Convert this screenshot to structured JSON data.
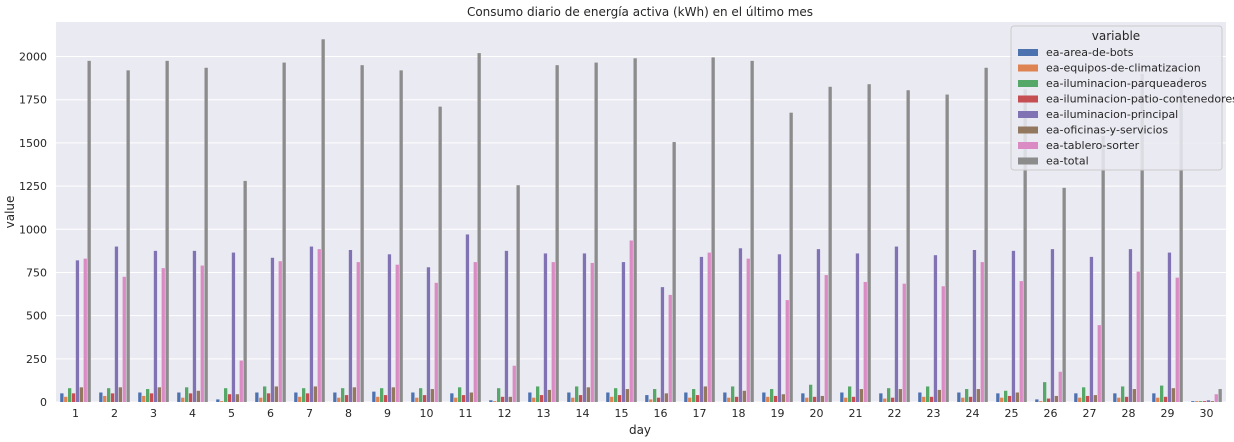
{
  "chart_data": {
    "type": "bar",
    "title": "Consumo diario de energía activa (kWh) en el último mes",
    "xlabel": "day",
    "ylabel": "value",
    "ylim": [
      0,
      2200
    ],
    "yticks": [
      0,
      250,
      500,
      750,
      1000,
      1250,
      1500,
      1750,
      2000
    ],
    "grid": true,
    "legend": {
      "title": "variable",
      "placement": "top-right"
    },
    "categories": [
      "1",
      "2",
      "3",
      "4",
      "5",
      "6",
      "7",
      "8",
      "9",
      "10",
      "11",
      "12",
      "13",
      "14",
      "15",
      "16",
      "17",
      "18",
      "19",
      "20",
      "21",
      "22",
      "23",
      "24",
      "25",
      "26",
      "27",
      "28",
      "29",
      "30"
    ],
    "series": [
      {
        "name": "ea-area-de-bots",
        "color": "#4c72b0",
        "values": [
          50,
          55,
          55,
          55,
          15,
          55,
          55,
          55,
          60,
          55,
          50,
          10,
          55,
          55,
          55,
          40,
          55,
          55,
          55,
          50,
          55,
          50,
          55,
          55,
          50,
          15,
          50,
          50,
          50,
          5
        ]
      },
      {
        "name": "ea-equipos-de-climatizacion",
        "color": "#dd8452",
        "values": [
          30,
          35,
          35,
          25,
          5,
          25,
          30,
          25,
          30,
          25,
          25,
          5,
          25,
          25,
          30,
          15,
          25,
          25,
          30,
          25,
          25,
          20,
          30,
          25,
          25,
          5,
          25,
          25,
          25,
          5
        ]
      },
      {
        "name": "ea-iluminacion-parqueaderos",
        "color": "#55a868",
        "values": [
          80,
          80,
          75,
          85,
          80,
          90,
          80,
          80,
          80,
          80,
          85,
          80,
          90,
          90,
          80,
          75,
          75,
          90,
          75,
          100,
          90,
          80,
          90,
          75,
          65,
          115,
          85,
          90,
          95,
          5
        ]
      },
      {
        "name": "ea-iluminacion-patio-contenedores",
        "color": "#c44e52",
        "values": [
          50,
          50,
          50,
          50,
          45,
          50,
          50,
          40,
          40,
          40,
          40,
          30,
          40,
          40,
          40,
          25,
          40,
          30,
          35,
          30,
          30,
          25,
          30,
          30,
          35,
          20,
          35,
          30,
          30,
          5
        ]
      },
      {
        "name": "ea-iluminacion-principal",
        "color": "#8172b3",
        "values": [
          820,
          900,
          875,
          875,
          865,
          835,
          900,
          880,
          855,
          780,
          970,
          875,
          860,
          860,
          810,
          665,
          840,
          890,
          855,
          885,
          860,
          900,
          850,
          880,
          875,
          885,
          840,
          885,
          865,
          10
        ]
      },
      {
        "name": "ea-oficinas-y-servicios",
        "color": "#937860",
        "values": [
          85,
          85,
          85,
          65,
          45,
          90,
          90,
          85,
          85,
          75,
          55,
          30,
          70,
          85,
          75,
          50,
          90,
          65,
          45,
          35,
          75,
          75,
          70,
          75,
          55,
          35,
          40,
          75,
          80,
          5
        ]
      },
      {
        "name": "ea-tablero-sorter",
        "color": "#da8bc3",
        "values": [
          830,
          725,
          775,
          790,
          240,
          815,
          885,
          810,
          795,
          690,
          810,
          210,
          810,
          805,
          935,
          620,
          865,
          830,
          590,
          735,
          695,
          685,
          670,
          810,
          700,
          175,
          445,
          755,
          720,
          45
        ]
      },
      {
        "name": "ea-total",
        "color": "#8c8c8c",
        "values": [
          1975,
          1920,
          1975,
          1935,
          1280,
          1965,
          2100,
          1950,
          1920,
          1710,
          2020,
          1255,
          1950,
          1965,
          1990,
          1505,
          1995,
          1975,
          1675,
          1825,
          1840,
          1805,
          1780,
          1935,
          1810,
          1240,
          1540,
          1900,
          1880,
          75
        ]
      }
    ]
  }
}
